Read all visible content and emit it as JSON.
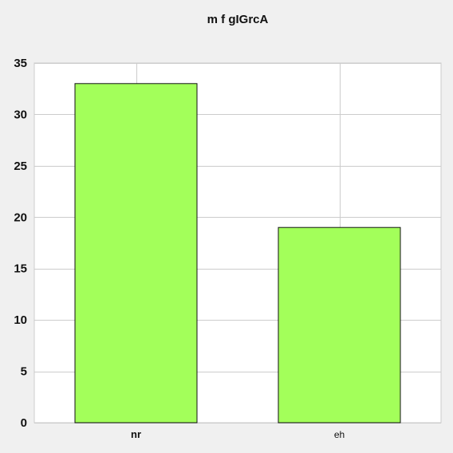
{
  "chart_data": {
    "type": "bar",
    "title": "m f gIGrcA",
    "categories": [
      "nr",
      "eh"
    ],
    "values": [
      33,
      19
    ],
    "ylim": [
      0,
      35
    ],
    "yticks": [
      0,
      5,
      10,
      15,
      20,
      25,
      30,
      35
    ],
    "grid": true,
    "bar_color": "#a3ff5a",
    "bar_edge_color": "#111111",
    "background_color": "#f0f0f0",
    "plot_background_color": "#ffffff",
    "grid_color": "#cccccc",
    "xlabel": "",
    "ylabel": ""
  }
}
